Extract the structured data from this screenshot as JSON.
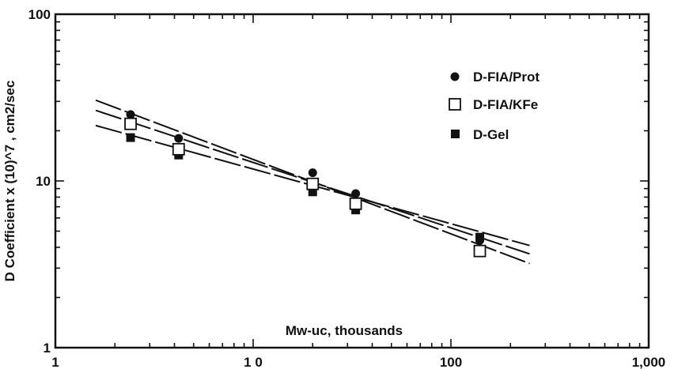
{
  "chart_data": {
    "type": "scatter",
    "title": "",
    "xlabel": "Mw-uc,  thousands",
    "ylabel": "D  Coefficient  x  (10)^7  ,  cm2/sec",
    "x_scale": "log",
    "y_scale": "log",
    "xlim": [
      1,
      1000
    ],
    "ylim": [
      1,
      100
    ],
    "x_ticks": [
      1,
      10,
      100,
      1000
    ],
    "x_tick_labels": [
      "1",
      "1 0",
      "100",
      "1,000"
    ],
    "y_ticks": [
      1,
      10,
      100
    ],
    "y_tick_labels": [
      "1",
      "10",
      "100"
    ],
    "grid": false,
    "legend_position": "top-right",
    "series": [
      {
        "name": "D-FIA/Prot",
        "marker": "filled-circle",
        "x": [
          2.4,
          4.2,
          20,
          33,
          140
        ],
        "y": [
          25,
          18,
          11.2,
          8.4,
          4.4
        ],
        "fit": {
          "x": [
            1.6,
            250
          ],
          "y": [
            30.5,
            3.2
          ]
        }
      },
      {
        "name": "D-FIA/KFe",
        "marker": "open-square",
        "x": [
          2.4,
          4.2,
          20,
          33,
          140
        ],
        "y": [
          22,
          15.5,
          9.6,
          7.3,
          3.8
        ],
        "fit": {
          "x": [
            1.6,
            250
          ],
          "y": [
            26.5,
            3.65
          ]
        }
      },
      {
        "name": "D-Gel",
        "marker": "filled-square",
        "x": [
          2.4,
          4.2,
          20,
          33,
          140
        ],
        "y": [
          18.2,
          14.3,
          8.6,
          6.7,
          4.6
        ],
        "fit": {
          "x": [
            1.6,
            250
          ],
          "y": [
            21.5,
            4.1
          ]
        }
      }
    ]
  }
}
